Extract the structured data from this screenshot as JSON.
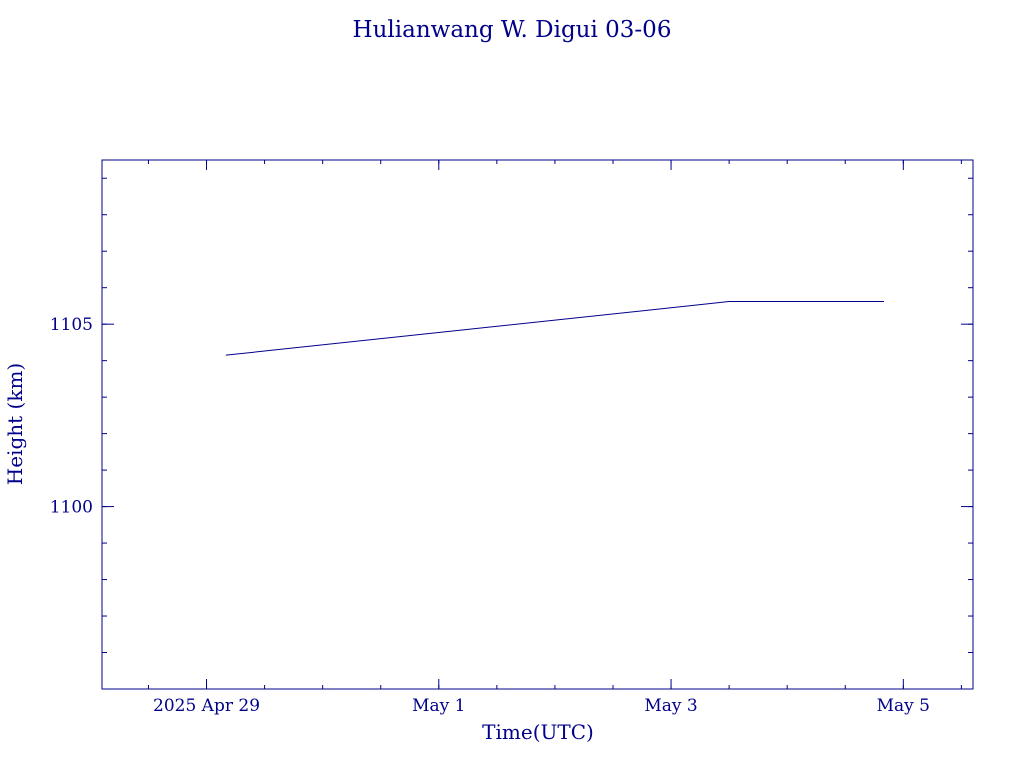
{
  "chart_data": {
    "type": "line",
    "title": "Hulianwang W. Digui 03-06",
    "xlabel": "Time(UTC)",
    "ylabel": "Height (km)",
    "x_axis": {
      "type": "date",
      "range": [
        "2025-04-28T02:24",
        "2025-05-05T14:24"
      ],
      "major_ticks": [
        {
          "date": "2025-04-29",
          "label": "2025 Apr 29"
        },
        {
          "date": "2025-05-01",
          "label": "May  1"
        },
        {
          "date": "2025-05-03",
          "label": "May  3"
        },
        {
          "date": "2025-05-05",
          "label": "May  5"
        }
      ],
      "minor_tick_step_hours": 12
    },
    "y_axis": {
      "range": [
        1095.0,
        1109.5
      ],
      "major_ticks": [
        {
          "value": 1100,
          "label": "1100"
        },
        {
          "value": 1105,
          "label": "1105"
        }
      ],
      "minor_tick_step": 1
    },
    "grid": false,
    "legend": "none",
    "series": [
      {
        "color": "#00008B",
        "x": [
          "2025-04-29T04:00",
          "2025-05-03T12:00",
          "2025-05-04T20:00"
        ],
        "y": [
          1104.15,
          1105.62,
          1105.62
        ]
      }
    ],
    "colors": {
      "axes": "#00008B",
      "text": "#00008B",
      "background": "#FFFFFF"
    }
  }
}
